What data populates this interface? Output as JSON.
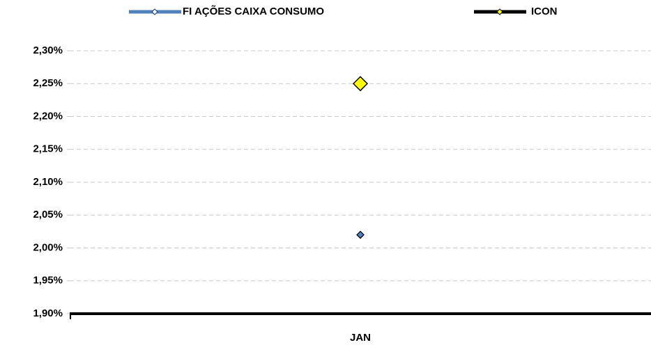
{
  "chart_data": {
    "type": "line",
    "categories": [
      "JAN"
    ],
    "series": [
      {
        "name": "FI AÇÕES CAIXA CONSUMO",
        "color": "#4f81bd",
        "values": [
          2.02
        ]
      },
      {
        "name": "ICON",
        "color": "#000000",
        "marker_color": "#ffff00",
        "values": [
          2.25
        ]
      }
    ],
    "ylim": [
      1.9,
      2.3
    ],
    "yticks": [
      {
        "value": 1.9,
        "label": "1,90%"
      },
      {
        "value": 1.95,
        "label": "1,95%"
      },
      {
        "value": 2.0,
        "label": "2,00%"
      },
      {
        "value": 2.05,
        "label": "2,05%"
      },
      {
        "value": 2.1,
        "label": "2,10%"
      },
      {
        "value": 2.15,
        "label": "2,15%"
      },
      {
        "value": 2.2,
        "label": "2,20%"
      },
      {
        "value": 2.25,
        "label": "2,25%"
      },
      {
        "value": 2.3,
        "label": "2,30%"
      }
    ],
    "grid": true,
    "legend": "top"
  }
}
